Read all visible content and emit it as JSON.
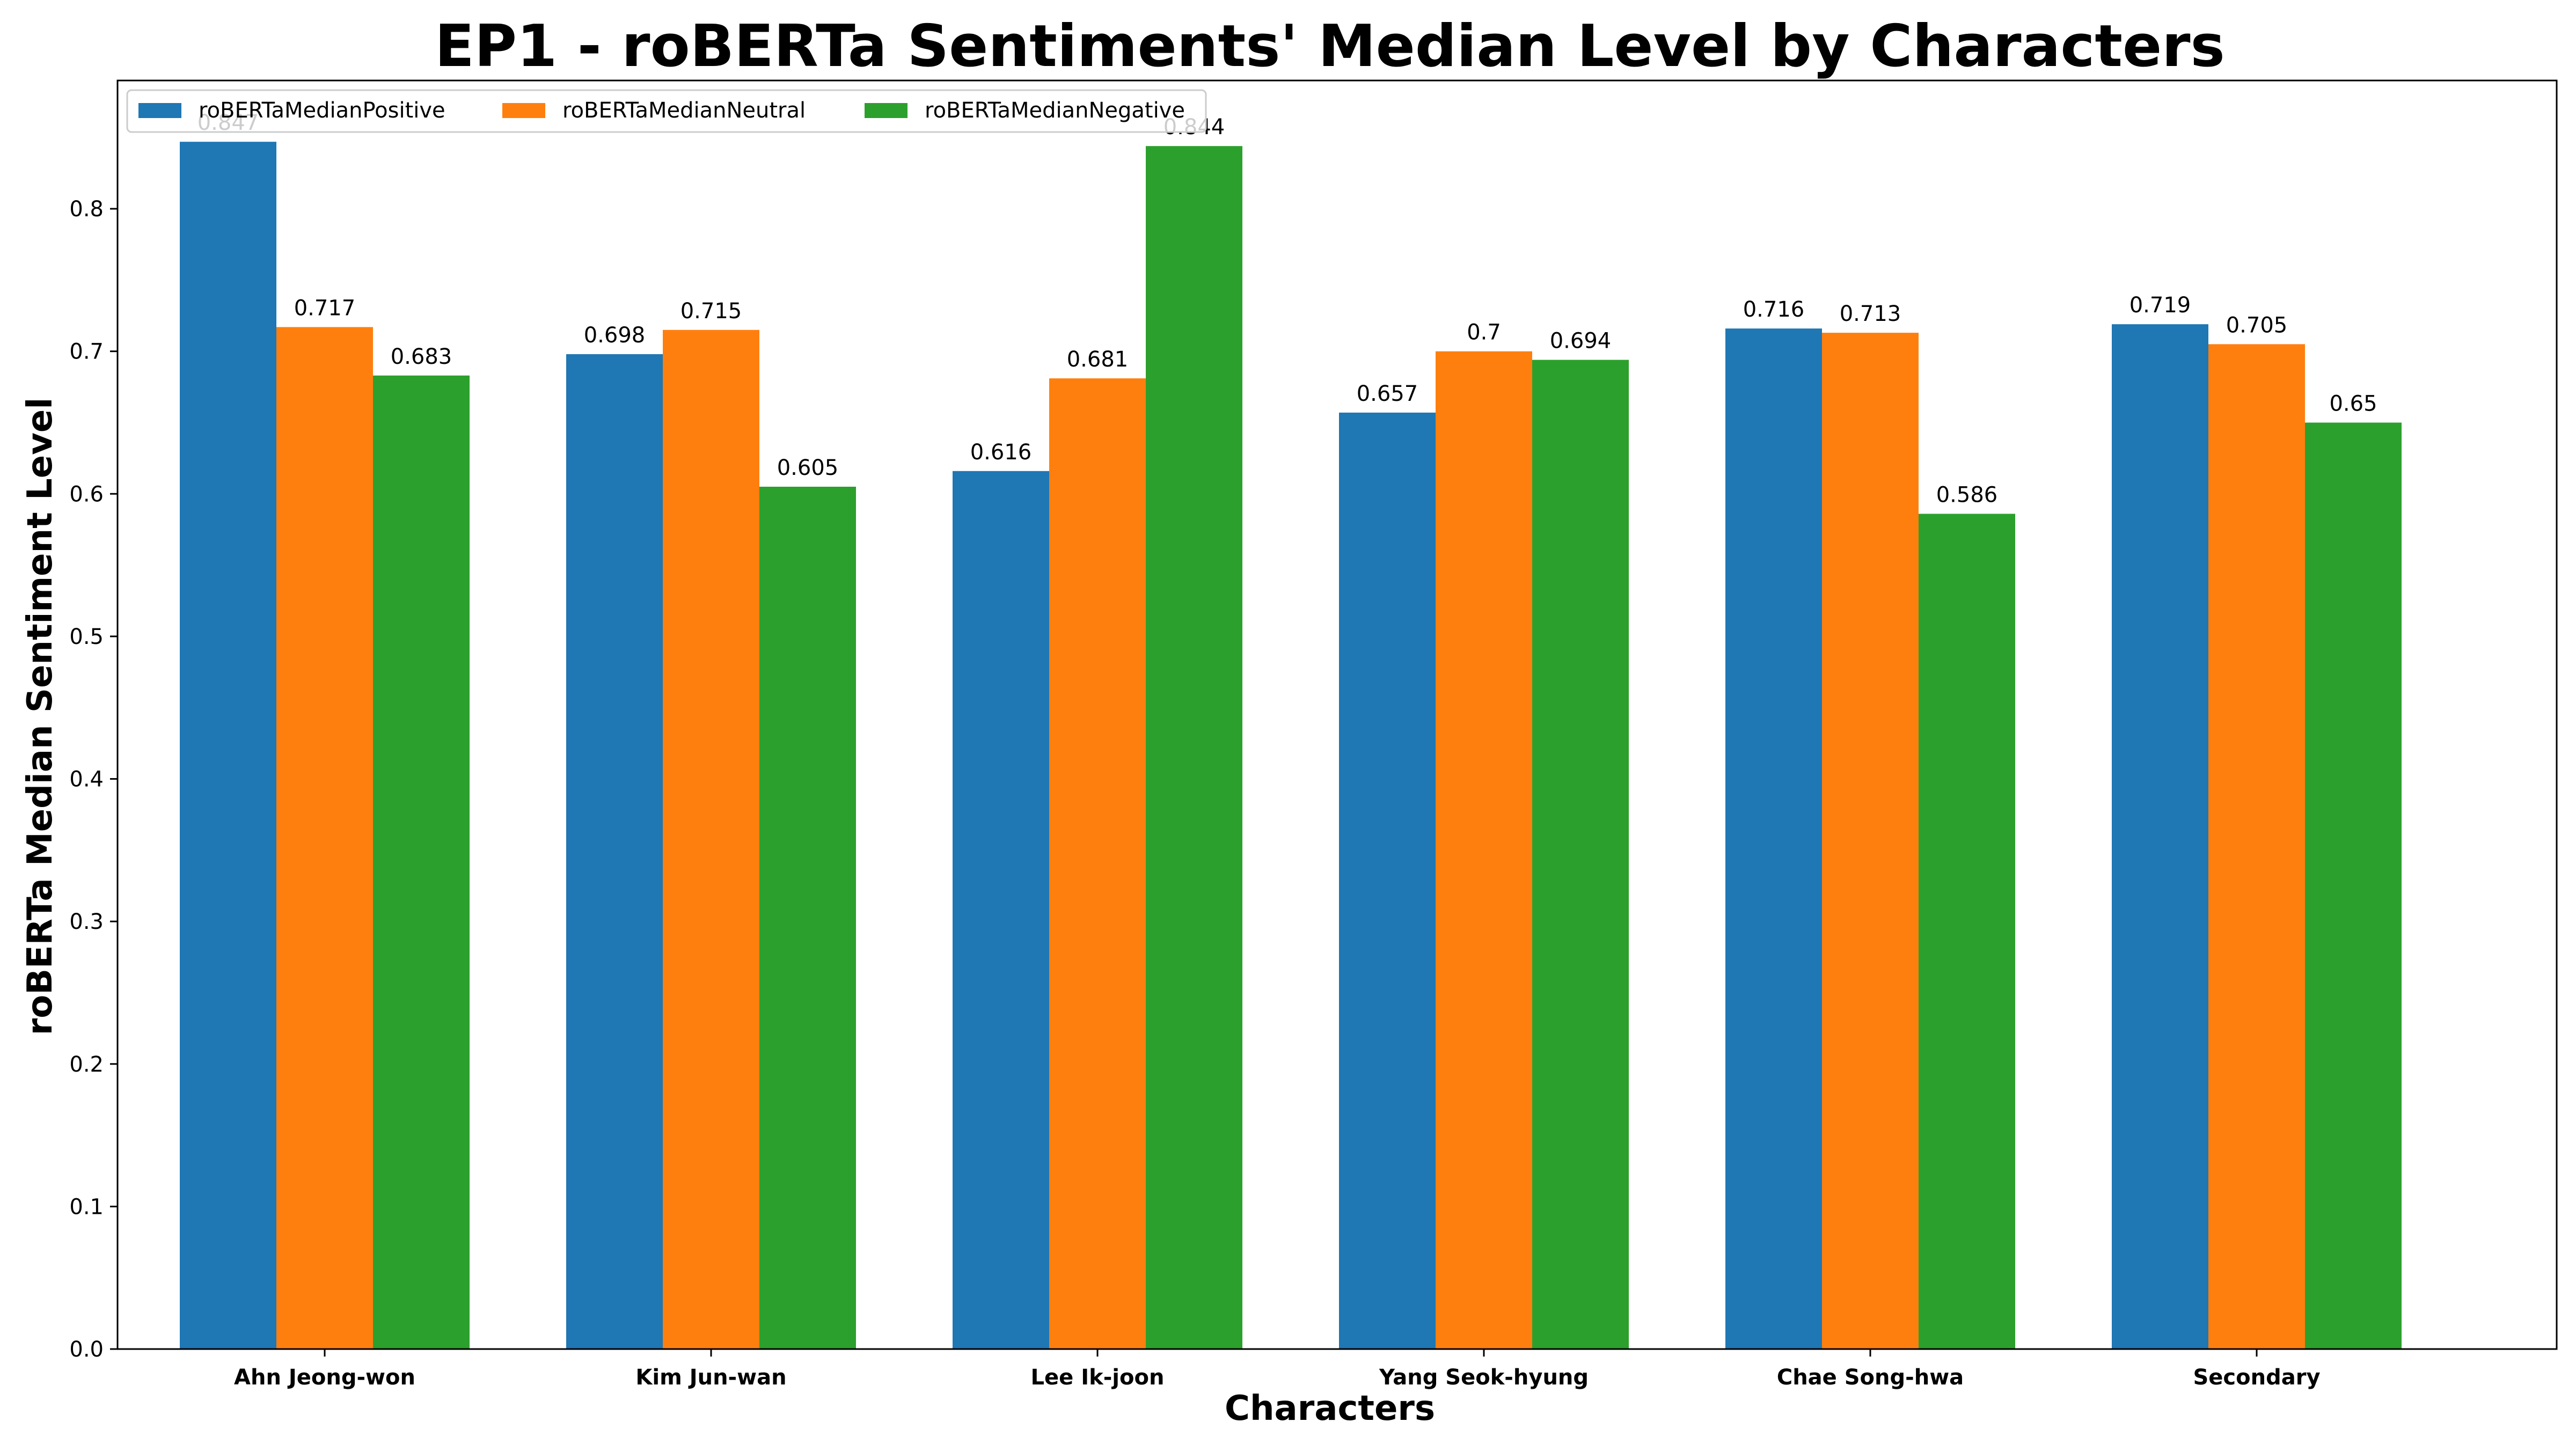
{
  "chart_data": {
    "type": "bar",
    "title": "EP1 - roBERTa Sentiments' Median Level by Characters",
    "xlabel": "Characters",
    "ylabel": "roBERTa Median Sentiment Level",
    "categories": [
      "Ahn Jeong-won",
      "Kim Jun-wan",
      "Lee Ik-joon",
      "Yang Seok-hyung",
      "Chae Song-hwa",
      "Secondary"
    ],
    "series": [
      {
        "name": "roBERTaMedianPositive",
        "color": "#1f77b4",
        "values": [
          0.847,
          0.698,
          0.616,
          0.657,
          0.716,
          0.719
        ],
        "labels": [
          "0.847",
          "0.698",
          "0.616",
          "0.657",
          "0.716",
          "0.719"
        ]
      },
      {
        "name": "roBERTaMedianNeutral",
        "color": "#ff7f0e",
        "values": [
          0.717,
          0.715,
          0.681,
          0.7,
          0.713,
          0.705
        ],
        "labels": [
          "0.717",
          "0.715",
          "0.681",
          "0.7",
          "0.713",
          "0.705"
        ]
      },
      {
        "name": "roBERTaMedianNegative",
        "color": "#2ca02c",
        "values": [
          0.683,
          0.605,
          0.844,
          0.694,
          0.586,
          0.65
        ],
        "labels": [
          "0.683",
          "0.605",
          "0.844",
          "0.694",
          "0.586",
          "0.65"
        ]
      }
    ],
    "ylim": [
      0,
      0.89
    ],
    "yticks": [
      0.0,
      0.1,
      0.2,
      0.3,
      0.4,
      0.5,
      0.6,
      0.7,
      0.8
    ],
    "ytick_labels": [
      "0.0",
      "0.1",
      "0.2",
      "0.3",
      "0.4",
      "0.5",
      "0.6",
      "0.7",
      "0.8"
    ],
    "grid": false,
    "legend_position": "top-left",
    "legend_columns": 3
  }
}
